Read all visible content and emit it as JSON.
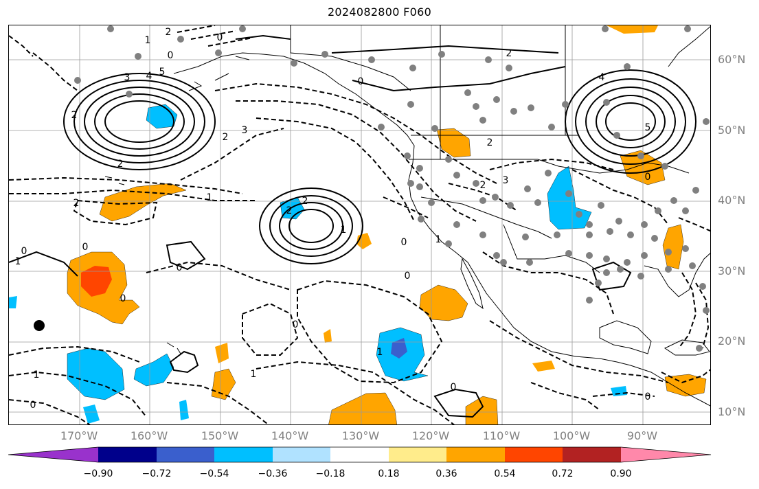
{
  "title": "2024082800 F060",
  "lat_labels": [
    "60°N",
    "50°N",
    "40°N",
    "30°N",
    "20°N",
    "10°N"
  ],
  "lon_labels": [
    "170°W",
    "160°W",
    "150°W",
    "140°W",
    "130°W",
    "120°W",
    "110°W",
    "100°W",
    "90°W"
  ],
  "colorbar": {
    "colors": [
      "#9932cc",
      "#00008b",
      "#3a5fcd",
      "#00bfff",
      "#b0e2ff",
      "#ffffff",
      "#ffec8b",
      "#ffa500",
      "#ff4500",
      "#b22222",
      "#ff88aa"
    ],
    "tick_labels": [
      "−0.90",
      "−0.72",
      "−0.54",
      "−0.36",
      "−0.18",
      "0.18",
      "0.36",
      "0.54",
      "0.72",
      "0.90"
    ]
  },
  "contour_labels": [
    "1",
    "2",
    "3",
    "4",
    "5",
    "0",
    "2",
    "2",
    "3",
    "2",
    "2",
    "0",
    "0",
    "1",
    "2",
    "2",
    "1",
    "0",
    "0",
    "0",
    "1",
    "0",
    "0",
    "1",
    "1",
    "2",
    "3",
    "2",
    "4",
    "5",
    "0",
    "2",
    "0",
    "0",
    "0",
    "1",
    "1",
    "0",
    "0"
  ],
  "map_legend_note": ""
}
